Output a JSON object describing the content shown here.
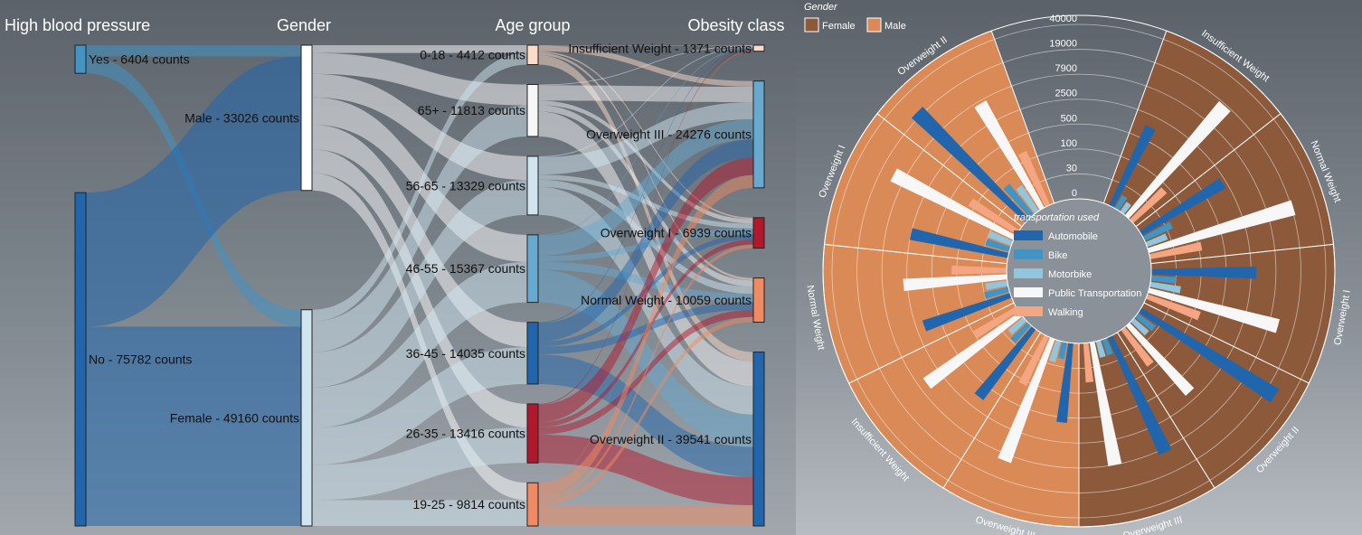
{
  "colors": {
    "auto": "#2166ac",
    "bike": "#4393c3",
    "motor": "#92c5de",
    "public": "#f7f7f7",
    "walk": "#f4a582",
    "female": "#8c5a3a",
    "male": "#d98a56",
    "age_0_18": "#fddbc7",
    "age_65p": "#f7f7f7",
    "age_56_65": "#d1e5f0",
    "age_46_55": "#67a9cf",
    "age_36_45": "#2166ac",
    "age_26_35": "#b2182b",
    "age_19_25": "#ef8a62",
    "ob_insuff": "#fddbc7",
    "ob_ow3": "#67a9cf",
    "ob_ow1": "#b2182b",
    "ob_normal": "#ef8a62",
    "ob_ow2": "#2166ac",
    "hbp_yes": "#4393c3",
    "hbp_no": "#2166ac",
    "male_node": "#ffffff",
    "female_node": "#d1e5f0"
  },
  "chart_data": [
    {
      "type": "sankey",
      "columns": [
        "High blood pressure",
        "Gender",
        "Age group",
        "Obesity class"
      ],
      "nodes": {
        "hbp": [
          {
            "label": "Yes - 6404 counts",
            "value": 6404
          },
          {
            "label": "No - 75782 counts",
            "value": 75782
          }
        ],
        "gender": [
          {
            "label": "Male - 33026 counts",
            "value": 33026
          },
          {
            "label": "Female - 49160 counts",
            "value": 49160
          }
        ],
        "age": [
          {
            "label": "0-18 - 4412 counts",
            "value": 4412
          },
          {
            "label": "65+ - 11813 counts",
            "value": 11813
          },
          {
            "label": "56-65 - 13329 counts",
            "value": 13329
          },
          {
            "label": "46-55 - 15367 counts",
            "value": 15367
          },
          {
            "label": "36-45 - 14035 counts",
            "value": 14035
          },
          {
            "label": "26-35 - 13416 counts",
            "value": 13416
          },
          {
            "label": "19-25 - 9814 counts",
            "value": 9814
          }
        ],
        "obesity": [
          {
            "label": "Insufficient Weight - 1371 counts",
            "value": 1371
          },
          {
            "label": "Overweight III - 24276 counts",
            "value": 24276
          },
          {
            "label": "Overweight I - 6939 counts",
            "value": 6939
          },
          {
            "label": "Normal Weight - 10059 counts",
            "value": 10059
          },
          {
            "label": "Overweight II - 39541 counts",
            "value": 39541
          }
        ]
      }
    },
    {
      "type": "radial-bar",
      "legend_title": "Gender",
      "gender_legend": [
        "Female",
        "Male"
      ],
      "transport_title": "transportation used",
      "transport_legend": [
        "Automobile",
        "Bike",
        "Motorbike",
        "Public Transportation",
        "Walking"
      ],
      "ticks": [
        "0",
        "30",
        "100",
        "500",
        "2500",
        "7900",
        "19000",
        "40000"
      ],
      "tick_values": [
        0,
        30,
        100,
        500,
        2500,
        7900,
        19000,
        40000
      ],
      "sectors": [
        {
          "label": "Insufficient Weight",
          "gender": "Female",
          "values": [
            1200,
            8,
            5,
            18000,
            80
          ]
        },
        {
          "label": "Normal Weight",
          "gender": "Female",
          "values": [
            2000,
            40,
            20,
            20000,
            120
          ]
        },
        {
          "label": "Overweight I",
          "gender": "Female",
          "values": [
            3200,
            30,
            40,
            11000,
            150
          ]
        },
        {
          "label": "Overweight II",
          "gender": "Female",
          "values": [
            26000,
            20,
            15,
            1500,
            80
          ]
        },
        {
          "label": "Overweight III",
          "gender": "Female",
          "values": [
            9000,
            10,
            10,
            8000,
            60
          ]
        },
        {
          "label": "Overweight III",
          "gender": "Male",
          "values": [
            700,
            10,
            20,
            10000,
            130
          ]
        },
        {
          "label": "Insufficient Weight",
          "gender": "Male",
          "values": [
            1200,
            25,
            15,
            5500,
            100
          ]
        },
        {
          "label": "Normal Weight",
          "gender": "Male",
          "values": [
            1500,
            30,
            20,
            3000,
            140
          ]
        },
        {
          "label": "Overweight I",
          "gender": "Male",
          "values": [
            2500,
            30,
            30,
            12000,
            150
          ]
        },
        {
          "label": "Overweight II",
          "gender": "Male",
          "values": [
            22000,
            60,
            40,
            7000,
            180
          ]
        }
      ]
    }
  ]
}
